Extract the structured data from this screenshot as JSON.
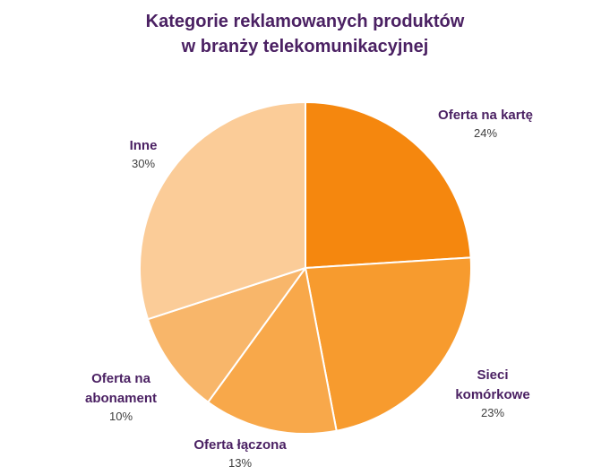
{
  "chart_data": {
    "type": "pie",
    "title_lines": [
      "Kategorie reklamowanych produktów",
      "w branży telekomunikacyjnej"
    ],
    "slices": [
      {
        "label_lines": [
          "Oferta na kartę"
        ],
        "value": 24,
        "value_label": "24%",
        "color": "#f5870e"
      },
      {
        "label_lines": [
          "Sieci",
          "komórkowe"
        ],
        "value": 23,
        "value_label": "23%",
        "color": "#f79b2e"
      },
      {
        "label_lines": [
          "Oferta łączona"
        ],
        "value": 13,
        "value_label": "13%",
        "color": "#f8a84a"
      },
      {
        "label_lines": [
          "Oferta na",
          "abonament"
        ],
        "value": 10,
        "value_label": "10%",
        "color": "#f8b66a"
      },
      {
        "label_lines": [
          "Inne"
        ],
        "value": 30,
        "value_label": "30%",
        "color": "#fbcc98"
      }
    ]
  }
}
